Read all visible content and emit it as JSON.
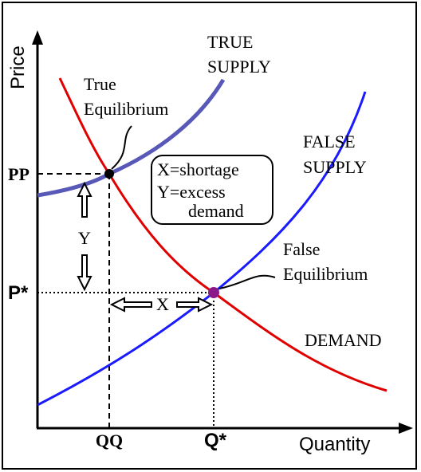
{
  "axes": {
    "y_label": "Price",
    "x_label": "Quantity"
  },
  "curves": {
    "true_supply": {
      "label": [
        "TRUE",
        "SUPPLY"
      ]
    },
    "false_supply": {
      "label": [
        "FALSE",
        "SUPPLY"
      ]
    },
    "demand": {
      "label": "DEMAND"
    }
  },
  "points": {
    "true_equilibrium": {
      "label": [
        "True",
        "Equilibrium"
      ]
    },
    "false_equilibrium": {
      "label": [
        "False",
        "Equilibrium"
      ]
    }
  },
  "ticks": {
    "pp": "PP",
    "p_star": "P*",
    "qq": "QQ",
    "q_star": "Q*"
  },
  "gaps": {
    "x": "X",
    "y": "Y"
  },
  "key": [
    "X=shortage",
    "Y=excess",
    "demand"
  ]
}
